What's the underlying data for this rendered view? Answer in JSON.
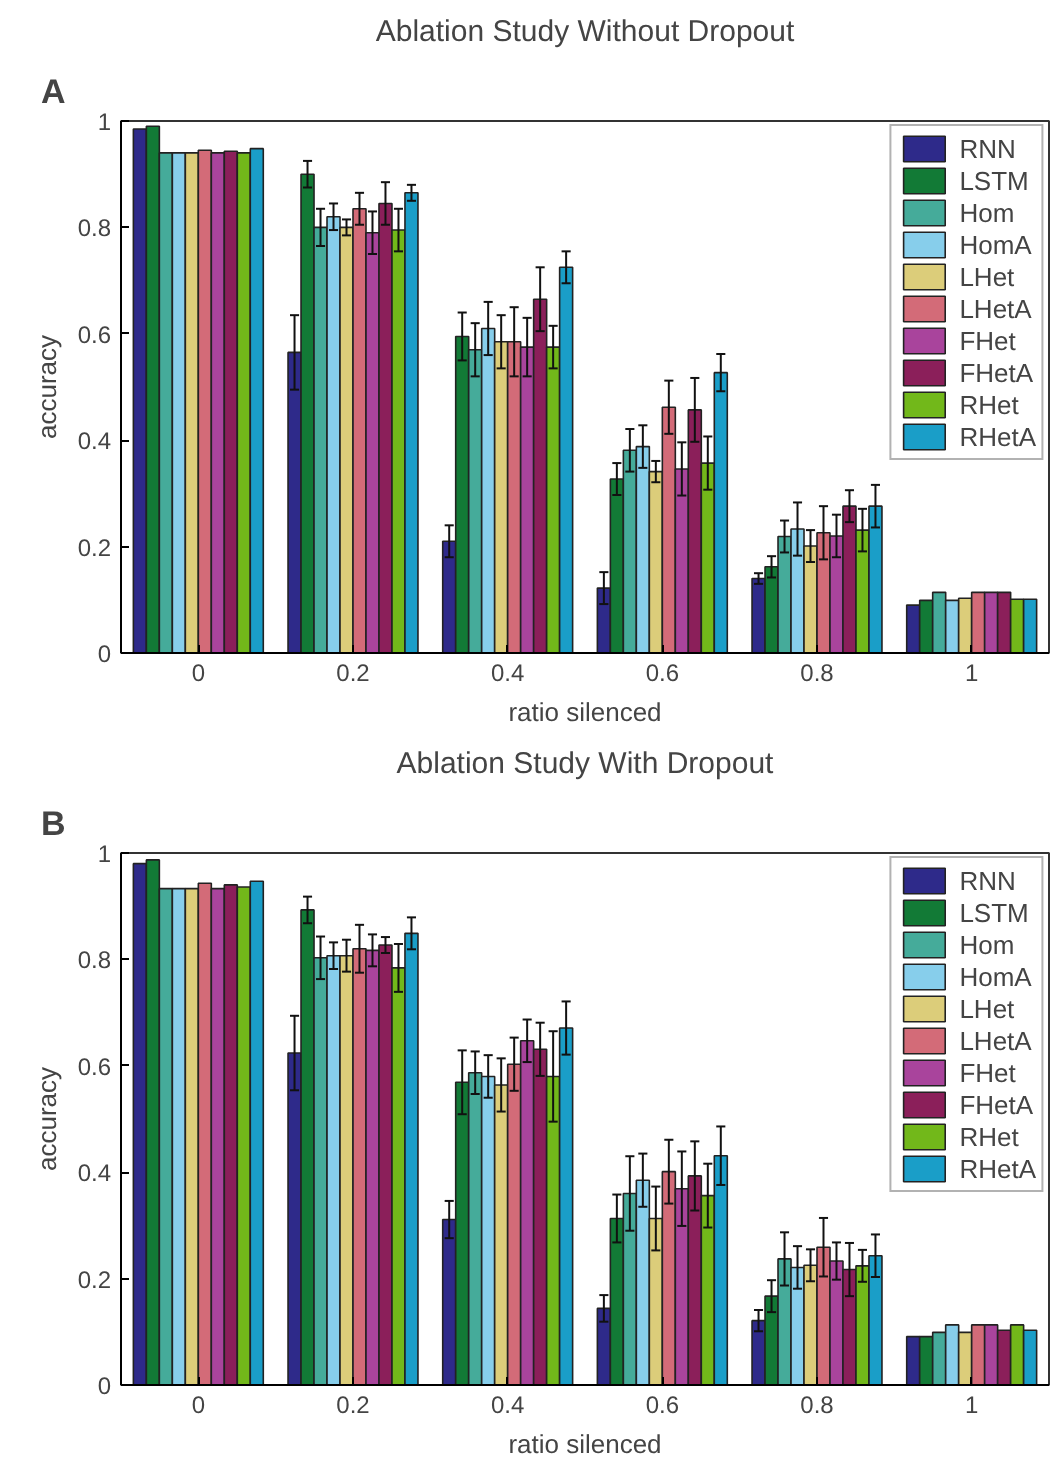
{
  "chart_data": [
    {
      "type": "bar",
      "title": "Ablation Study Without Dropout",
      "annotations": [
        "A"
      ],
      "xlabel": "ratio silenced",
      "ylabel": "accuracy",
      "categories": [
        "0",
        "0.2",
        "0.4",
        "0.6",
        "0.8",
        "1"
      ],
      "ylim": [
        0,
        1
      ],
      "yticks": [
        0,
        0.2,
        0.4,
        0.6,
        0.8,
        1
      ],
      "grid": false,
      "legend": "top right",
      "series": [
        {
          "name": "RNN",
          "color": "#2e2a8a",
          "values": [
            0.985,
            0.565,
            0.21,
            0.122,
            0.14,
            0.09
          ],
          "errors": [
            null,
            0.07,
            0.03,
            0.03,
            0.01,
            null
          ]
        },
        {
          "name": "LSTM",
          "color": "#127a36",
          "values": [
            0.99,
            0.9,
            0.595,
            0.327,
            0.162,
            0.099
          ],
          "errors": [
            null,
            0.025,
            0.045,
            0.03,
            0.02,
            null
          ]
        },
        {
          "name": "Hom",
          "color": "#45ab9a",
          "values": [
            0.94,
            0.8,
            0.57,
            0.381,
            0.219,
            0.114
          ],
          "errors": [
            null,
            0.035,
            0.05,
            0.04,
            0.03,
            null
          ]
        },
        {
          "name": "HomA",
          "color": "#87ceeb",
          "values": [
            0.94,
            0.82,
            0.61,
            0.388,
            0.233,
            0.099
          ],
          "errors": [
            null,
            0.025,
            0.05,
            0.04,
            0.05,
            null
          ]
        },
        {
          "name": "LHet",
          "color": "#dccd7a",
          "values": [
            0.94,
            0.8,
            0.585,
            0.341,
            0.201,
            0.103
          ],
          "errors": [
            null,
            0.015,
            0.05,
            0.02,
            0.03,
            null
          ]
        },
        {
          "name": "LHetA",
          "color": "#d36b78",
          "values": [
            0.945,
            0.835,
            0.585,
            0.462,
            0.226,
            0.114
          ],
          "errors": [
            null,
            0.03,
            0.065,
            0.05,
            0.05,
            null
          ]
        },
        {
          "name": "FHet",
          "color": "#a9449c",
          "values": [
            0.94,
            0.79,
            0.575,
            0.346,
            0.22,
            0.114
          ],
          "errors": [
            null,
            0.04,
            0.055,
            0.05,
            0.04,
            null
          ]
        },
        {
          "name": "FHetA",
          "color": "#8b1f5a",
          "values": [
            0.943,
            0.845,
            0.665,
            0.457,
            0.276,
            0.114
          ],
          "errors": [
            null,
            0.04,
            0.06,
            0.06,
            0.03,
            null
          ]
        },
        {
          "name": "RHet",
          "color": "#72b81a",
          "values": [
            0.94,
            0.795,
            0.575,
            0.357,
            0.231,
            0.101
          ],
          "errors": [
            null,
            0.04,
            0.04,
            0.05,
            0.04,
            null
          ]
        },
        {
          "name": "RHetA",
          "color": "#1a9ec8",
          "values": [
            0.948,
            0.865,
            0.725,
            0.527,
            0.276,
            0.101
          ],
          "errors": [
            null,
            0.015,
            0.03,
            0.035,
            0.04,
            null
          ]
        }
      ]
    },
    {
      "type": "bar",
      "title": "Ablation Study With Dropout",
      "annotations": [
        "B"
      ],
      "xlabel": "ratio silenced",
      "ylabel": "accuracy",
      "categories": [
        "0",
        "0.2",
        "0.4",
        "0.6",
        "0.8",
        "1"
      ],
      "ylim": [
        0,
        1
      ],
      "yticks": [
        0,
        0.2,
        0.4,
        0.6,
        0.8,
        1
      ],
      "grid": false,
      "legend": "top right",
      "series": [
        {
          "name": "RNN",
          "color": "#2e2a8a",
          "values": [
            0.98,
            0.624,
            0.311,
            0.144,
            0.121,
            0.091
          ],
          "errors": [
            null,
            0.07,
            0.035,
            0.025,
            0.02,
            null
          ]
        },
        {
          "name": "LSTM",
          "color": "#127a36",
          "values": [
            0.987,
            0.893,
            0.569,
            0.313,
            0.167,
            0.091
          ],
          "errors": [
            null,
            0.025,
            0.06,
            0.045,
            0.03,
            null
          ]
        },
        {
          "name": "Hom",
          "color": "#45ab9a",
          "values": [
            0.933,
            0.803,
            0.587,
            0.36,
            0.237,
            0.099
          ],
          "errors": [
            null,
            0.04,
            0.04,
            0.07,
            0.05,
            null
          ]
        },
        {
          "name": "HomA",
          "color": "#87ceeb",
          "values": [
            0.933,
            0.807,
            0.58,
            0.385,
            0.221,
            0.113
          ],
          "errors": [
            null,
            0.025,
            0.04,
            0.05,
            0.04,
            null
          ]
        },
        {
          "name": "LHet",
          "color": "#dccd7a",
          "values": [
            0.933,
            0.807,
            0.564,
            0.313,
            0.225,
            0.099
          ],
          "errors": [
            null,
            0.03,
            0.05,
            0.06,
            0.03,
            null
          ]
        },
        {
          "name": "LHetA",
          "color": "#d36b78",
          "values": [
            0.943,
            0.82,
            0.603,
            0.401,
            0.259,
            0.113
          ],
          "errors": [
            null,
            0.045,
            0.05,
            0.06,
            0.055,
            null
          ]
        },
        {
          "name": "FHet",
          "color": "#a9449c",
          "values": [
            0.933,
            0.817,
            0.647,
            0.369,
            0.233,
            0.113
          ],
          "errors": [
            null,
            0.03,
            0.04,
            0.07,
            0.035,
            null
          ]
        },
        {
          "name": "FHetA",
          "color": "#8b1f5a",
          "values": [
            0.94,
            0.827,
            0.631,
            0.393,
            0.217,
            0.103
          ],
          "errors": [
            null,
            0.015,
            0.05,
            0.065,
            0.05,
            null
          ]
        },
        {
          "name": "RHet",
          "color": "#72b81a",
          "values": [
            0.936,
            0.784,
            0.58,
            0.356,
            0.224,
            0.113
          ],
          "errors": [
            null,
            0.045,
            0.085,
            0.06,
            0.03,
            null
          ]
        },
        {
          "name": "RHetA",
          "color": "#1a9ec8",
          "values": [
            0.947,
            0.849,
            0.671,
            0.431,
            0.243,
            0.103
          ],
          "errors": [
            null,
            0.03,
            0.05,
            0.055,
            0.04,
            null
          ]
        }
      ]
    }
  ]
}
